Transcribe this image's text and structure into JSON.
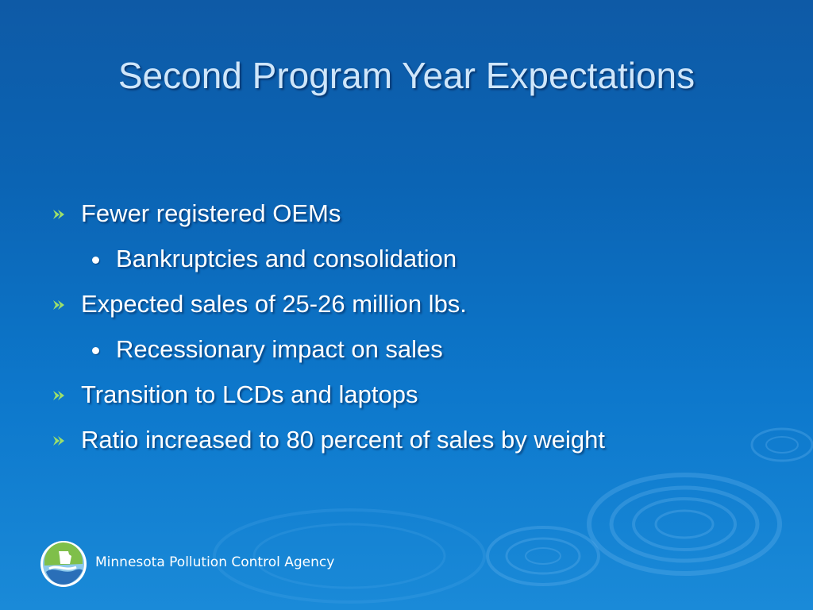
{
  "slide": {
    "title": "Second Program Year Expectations",
    "bullets": [
      {
        "level": 1,
        "text": "Fewer registered OEMs",
        "marker": "arrow-bullet-icon"
      },
      {
        "level": 2,
        "text": "Bankruptcies and consolidation",
        "marker": "dot-bullet-icon"
      },
      {
        "level": 1,
        "text": "Expected sales of 25-26 million lbs.",
        "marker": "arrow-bullet-icon"
      },
      {
        "level": 2,
        "text": "Recessionary impact on sales",
        "marker": "dot-bullet-icon"
      },
      {
        "level": 1,
        "text": "Transition to LCDs and laptops",
        "marker": "arrow-bullet-icon"
      },
      {
        "level": 1,
        "text": "Ratio increased to 80 percent of sales by weight",
        "marker": "arrow-bullet-icon"
      }
    ]
  },
  "footer": {
    "agency_name": "Minnesota Pollution Control Agency",
    "logo_icon": "mpca-logo-icon"
  },
  "colors": {
    "background_top": "#0e5aa6",
    "background_bottom": "#1a8ad8",
    "title": "#cfe6fa",
    "text": "#ffffff",
    "arrow_bullet": "#9ee06a"
  }
}
